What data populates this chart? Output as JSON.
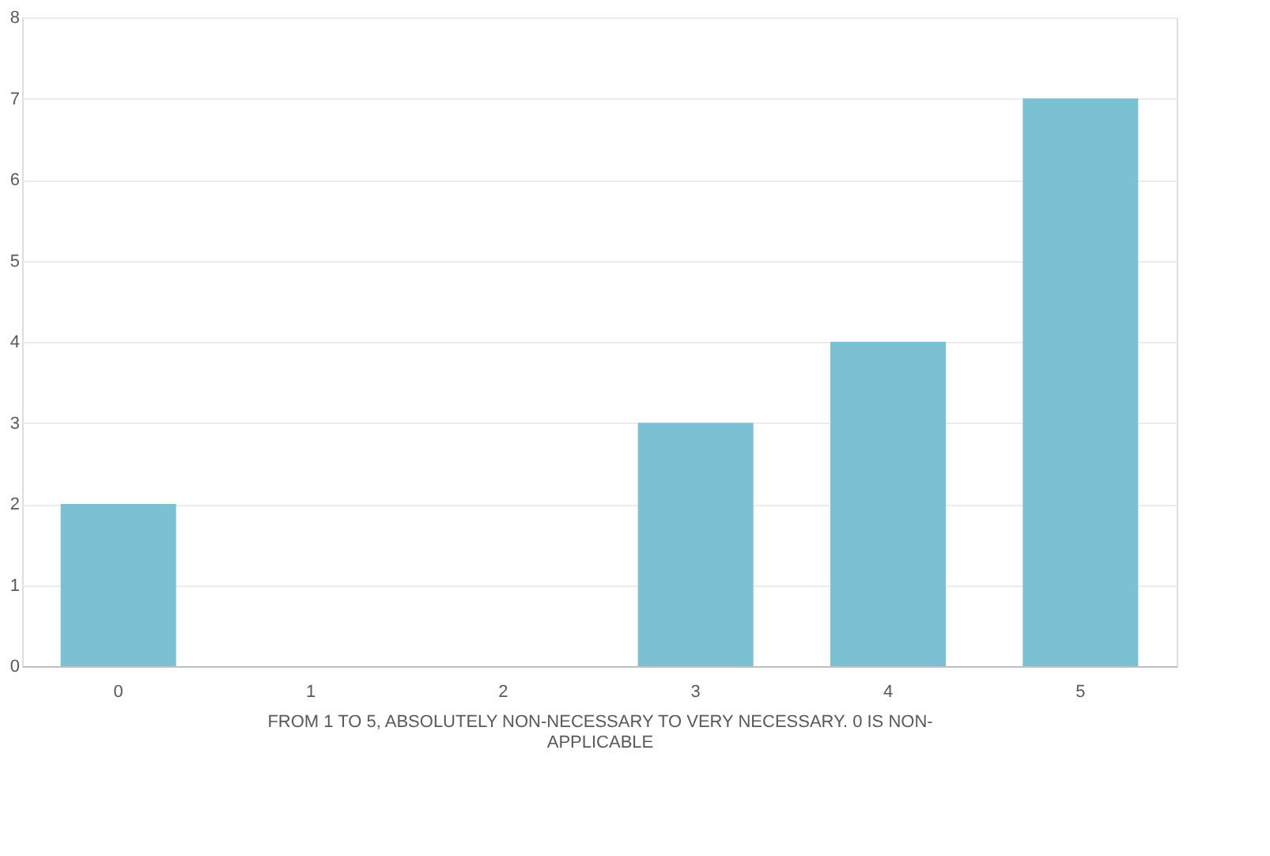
{
  "chart_data": {
    "type": "bar",
    "xlabel": "FROM 1 TO 5, ABSOLUTELY NON-NECESSARY TO VERY NECESSARY. 0 IS NON-APPLICABLE",
    "categories": [
      "0",
      "1",
      "2",
      "3",
      "4",
      "5"
    ],
    "values": [
      2,
      0,
      0,
      3,
      4,
      7
    ],
    "color": "#7bc0d3",
    "ylim": [
      0,
      8
    ],
    "yticks": [
      0,
      1,
      2,
      3,
      4,
      5,
      6,
      7,
      8
    ],
    "grid": "y"
  }
}
